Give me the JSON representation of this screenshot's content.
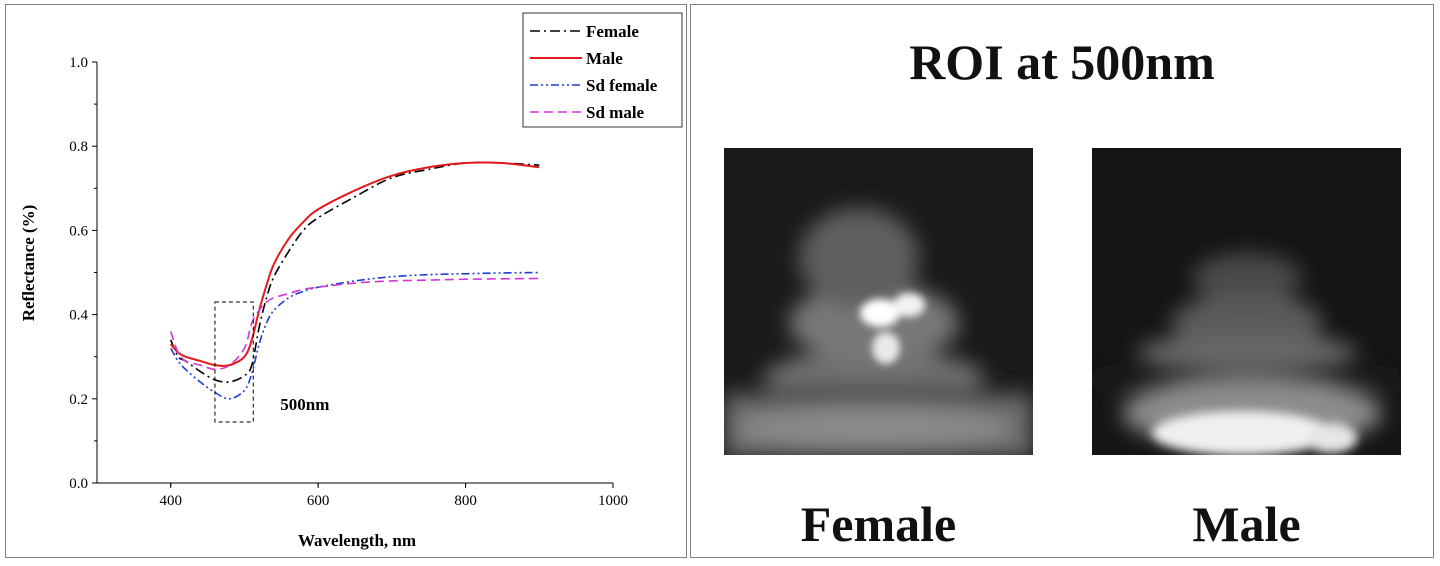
{
  "chart_data": {
    "type": "line",
    "xlabel": "Wavelength, nm",
    "ylabel": "Reflectance (%)",
    "xlim": [
      300,
      1000
    ],
    "ylim": [
      0.0,
      1.0
    ],
    "x_ticks": [
      400,
      600,
      800,
      1000
    ],
    "y_ticks": [
      0.0,
      0.2,
      0.4,
      0.6,
      0.8,
      1.0
    ],
    "x_tick_labels": [
      "400",
      "600",
      "800",
      "1000"
    ],
    "y_tick_labels": [
      "0.0",
      "0.2",
      "0.4",
      "0.6",
      "0.8",
      "1.0"
    ],
    "grid": false,
    "legend_position": "top-right",
    "x": [
      400,
      410,
      420,
      440,
      460,
      480,
      500,
      510,
      520,
      530,
      540,
      560,
      580,
      600,
      650,
      700,
      750,
      800,
      850,
      900
    ],
    "series": [
      {
        "name": "Female",
        "color": "#000000",
        "dash": "dashdot",
        "values": [
          0.34,
          0.3,
          0.29,
          0.265,
          0.245,
          0.24,
          0.255,
          0.28,
          0.37,
          0.44,
          0.49,
          0.55,
          0.6,
          0.63,
          0.68,
          0.725,
          0.745,
          0.76,
          0.76,
          0.755
        ]
      },
      {
        "name": "Male",
        "color": "#e31a1c",
        "dash": "solid",
        "values": [
          0.33,
          0.31,
          0.3,
          0.29,
          0.28,
          0.28,
          0.3,
          0.34,
          0.41,
          0.47,
          0.52,
          0.58,
          0.62,
          0.65,
          0.695,
          0.73,
          0.75,
          0.76,
          0.76,
          0.75
        ]
      },
      {
        "name": "Sd female",
        "color": "#1f3fd1",
        "dash": "dashdotdot",
        "values": [
          0.32,
          0.29,
          0.27,
          0.24,
          0.215,
          0.2,
          0.22,
          0.26,
          0.33,
          0.38,
          0.41,
          0.44,
          0.455,
          0.465,
          0.48,
          0.49,
          0.495,
          0.497,
          0.499,
          0.5
        ]
      },
      {
        "name": "Sd male",
        "color": "#d633d6",
        "dash": "dashed",
        "values": [
          0.36,
          0.31,
          0.29,
          0.28,
          0.27,
          0.28,
          0.32,
          0.38,
          0.41,
          0.43,
          0.44,
          0.45,
          0.46,
          0.465,
          0.475,
          0.48,
          0.482,
          0.484,
          0.485,
          0.486
        ]
      }
    ],
    "annotations": [
      {
        "text": "500nm",
        "box_x": [
          460,
          512
        ],
        "box_y": [
          0.145,
          0.43
        ]
      }
    ]
  },
  "roi": {
    "title": "ROI at 500nm",
    "images": [
      {
        "label": "Female",
        "icon": "female-roi-image"
      },
      {
        "label": "Male",
        "icon": "male-roi-image"
      }
    ]
  }
}
